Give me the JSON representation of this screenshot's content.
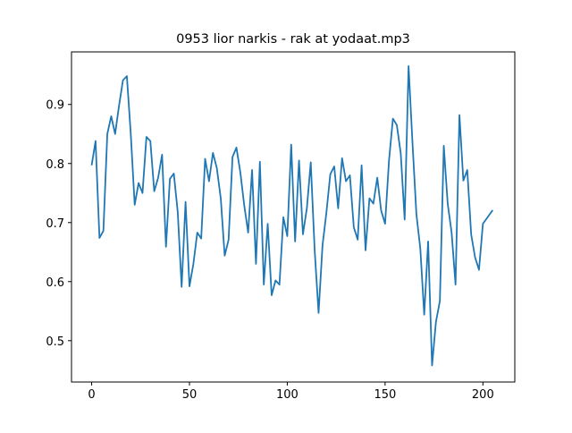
{
  "chart_data": {
    "type": "line",
    "title": "0953 lior narkis - rak at yodaat.mp3",
    "x": [
      0,
      2,
      4,
      6,
      8,
      10,
      12,
      14,
      16,
      18,
      20,
      22,
      24,
      26,
      28,
      30,
      32,
      34,
      36,
      38,
      40,
      42,
      44,
      46,
      48,
      50,
      52,
      54,
      56,
      58,
      60,
      62,
      64,
      66,
      68,
      70,
      72,
      74,
      76,
      78,
      80,
      82,
      84,
      86,
      88,
      90,
      92,
      94,
      96,
      98,
      100,
      102,
      104,
      106,
      108,
      110,
      112,
      114,
      116,
      118,
      120,
      122,
      124,
      126,
      128,
      130,
      132,
      134,
      136,
      138,
      140,
      142,
      144,
      146,
      148,
      150,
      152,
      154,
      156,
      158,
      160,
      162,
      164,
      166,
      168,
      170,
      172,
      174,
      176,
      178,
      180,
      182,
      184,
      186,
      188,
      190,
      192,
      194,
      196,
      198,
      200,
      205
    ],
    "series": [
      {
        "color": "#1f77b4",
        "values": [
          0.797,
          0.838,
          0.674,
          0.686,
          0.85,
          0.88,
          0.85,
          0.898,
          0.941,
          0.948,
          0.85,
          0.73,
          0.767,
          0.75,
          0.845,
          0.838,
          0.753,
          0.776,
          0.815,
          0.659,
          0.774,
          0.783,
          0.718,
          0.591,
          0.735,
          0.592,
          0.63,
          0.683,
          0.673,
          0.808,
          0.77,
          0.818,
          0.792,
          0.741,
          0.644,
          0.671,
          0.811,
          0.827,
          0.785,
          0.729,
          0.683,
          0.789,
          0.63,
          0.803,
          0.595,
          0.698,
          0.577,
          0.602,
          0.595,
          0.709,
          0.677,
          0.832,
          0.668,
          0.805,
          0.68,
          0.724,
          0.802,
          0.653,
          0.547,
          0.661,
          0.717,
          0.782,
          0.795,
          0.724,
          0.809,
          0.77,
          0.78,
          0.692,
          0.671,
          0.797,
          0.653,
          0.741,
          0.732,
          0.776,
          0.72,
          0.698,
          0.805,
          0.876,
          0.865,
          0.817,
          0.705,
          0.965,
          0.835,
          0.714,
          0.656,
          0.544,
          0.668,
          0.458,
          0.532,
          0.567,
          0.83,
          0.732,
          0.683,
          0.595,
          0.882,
          0.771,
          0.789,
          0.68,
          0.641,
          0.62,
          0.698,
          0.721
        ]
      }
    ],
    "xlim": [
      -10.3,
      216.3
    ],
    "ylim": [
      0.43,
      0.989
    ],
    "xticks": [
      0,
      50,
      100,
      150,
      200
    ],
    "yticks": [
      0.5,
      0.6,
      0.7,
      0.8,
      0.9
    ]
  }
}
